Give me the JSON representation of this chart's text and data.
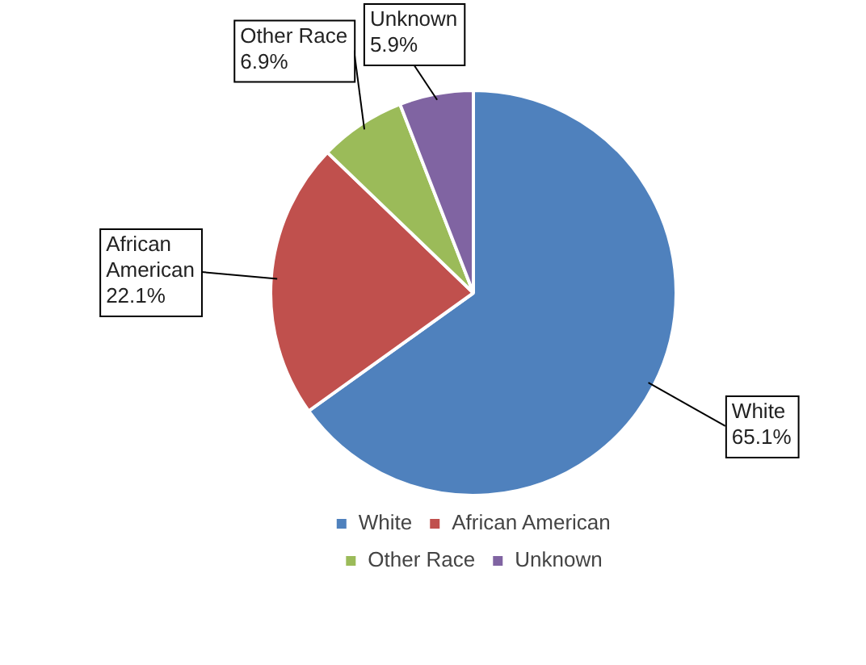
{
  "chart_data": {
    "type": "pie",
    "categories": [
      "White",
      "African American",
      "Other Race",
      "Unknown"
    ],
    "values": [
      65.1,
      22.1,
      6.9,
      5.9
    ],
    "value_labels": [
      "65.1%",
      "22.1%",
      "6.9%",
      "5.9%"
    ],
    "colors": [
      "#4f81bd",
      "#c0504d",
      "#9bbb59",
      "#8064a2"
    ],
    "legend": "bottom"
  }
}
